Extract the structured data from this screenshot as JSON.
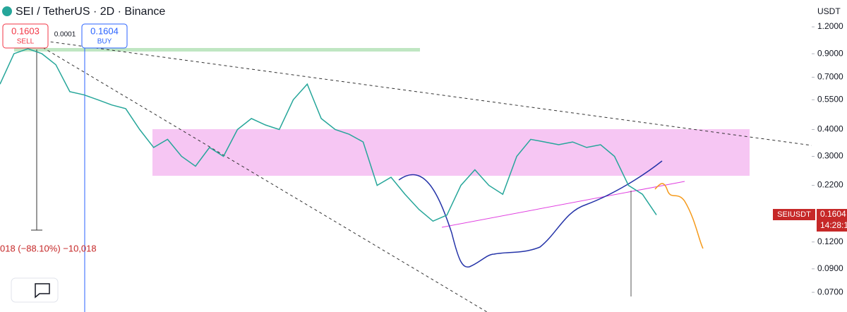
{
  "header": {
    "symbol": "SEI / TetherUS · 2D · Binance"
  },
  "orders": {
    "sell_price": "0.1603",
    "sell_label": "SELL",
    "spread": "0.0001",
    "buy_price": "0.1604",
    "buy_label": "BUY"
  },
  "measure_label": "018 (−88.10%) −10,018",
  "price_tag": {
    "symbol": "SEIUSDT",
    "price": "0.1604",
    "countdown": "14:28:1"
  },
  "chart_data": {
    "type": "line",
    "axis_label": "USDT",
    "log_scale": true,
    "color": "#26a69a",
    "values": [
      0.65,
      0.9,
      0.95,
      0.9,
      0.8,
      0.6,
      0.58,
      0.55,
      0.52,
      0.5,
      0.4,
      0.33,
      0.36,
      0.3,
      0.27,
      0.33,
      0.3,
      0.4,
      0.45,
      0.42,
      0.4,
      0.55,
      0.65,
      0.45,
      0.4,
      0.38,
      0.35,
      0.22,
      0.24,
      0.2,
      0.17,
      0.15,
      0.16,
      0.22,
      0.26,
      0.22,
      0.2,
      0.3,
      0.36,
      0.35,
      0.34,
      0.35,
      0.33,
      0.34,
      0.3,
      0.22,
      0.2,
      0.1604
    ],
    "ylim": [
      0.0567,
      1.6
    ],
    "yticks": [
      {
        "value": 1.2,
        "label": "1.2000"
      },
      {
        "value": 0.9,
        "label": "0.9000"
      },
      {
        "value": 0.7,
        "label": "0.7000"
      },
      {
        "value": 0.55,
        "label": "0.5500"
      },
      {
        "value": 0.4,
        "label": "0.4000"
      },
      {
        "value": 0.3,
        "label": "0.3000"
      },
      {
        "value": 0.22,
        "label": "0.2200"
      },
      {
        "value": 0.12,
        "label": "0.1200"
      },
      {
        "value": 0.09,
        "label": "0.0900"
      },
      {
        "value": 0.07,
        "label": "0.0700"
      }
    ]
  }
}
